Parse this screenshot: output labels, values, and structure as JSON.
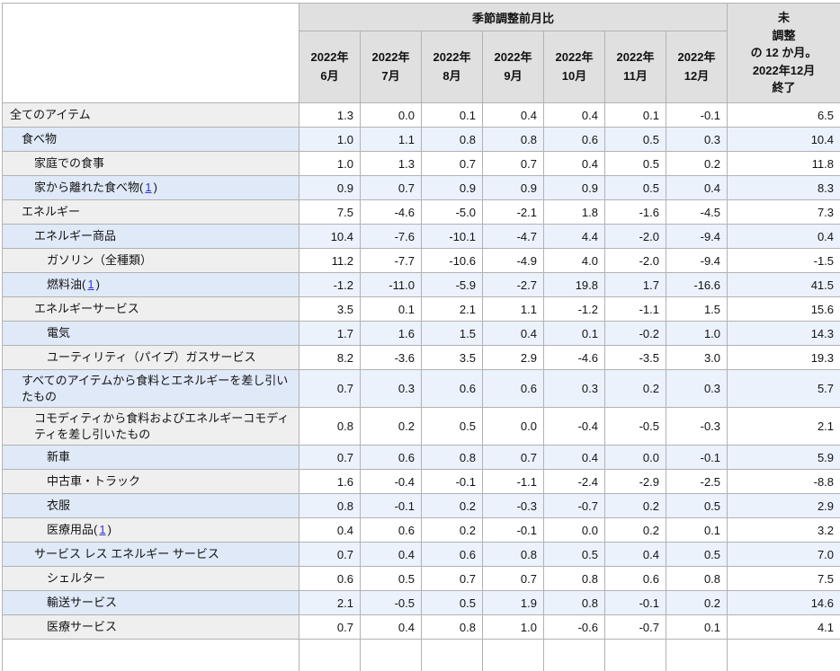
{
  "header": {
    "group_label": "季節調整前月比",
    "unadjusted_label": "未\n調整\nの 12 か月。\n2022年12月\n終了",
    "months": [
      "2022年\n6月",
      "2022年\n7月",
      "2022年\n8月",
      "2022年\n9月",
      "2022年\n10月",
      "2022年\n11月",
      "2022年\n12月"
    ]
  },
  "footnote_marker": "1",
  "colors": {
    "header_bg": "#e0e0e0",
    "label_bg": "#efefef",
    "stripe_label_bg": "#dfe9f8",
    "stripe_value_bg": "#ebf2fc",
    "value_bg": "#ffffff",
    "border": "#b2b2b2",
    "link": "#3333cc"
  },
  "chart_data": {
    "type": "table",
    "column_group_label": "季節調整前月比",
    "columns": [
      "2022年6月",
      "2022年7月",
      "2022年8月",
      "2022年9月",
      "2022年10月",
      "2022年11月",
      "2022年12月",
      "未調整の12か月。2022年12月終了"
    ],
    "rows": [
      {
        "label": "全てのアイテム",
        "indent": 0,
        "values": [
          1.3,
          0.0,
          0.1,
          0.4,
          0.4,
          0.1,
          -0.1,
          6.5
        ]
      },
      {
        "label": "食べ物",
        "indent": 1,
        "values": [
          1.0,
          1.1,
          0.8,
          0.8,
          0.6,
          0.5,
          0.3,
          10.4
        ]
      },
      {
        "label": "家庭での食事",
        "indent": 2,
        "values": [
          1.0,
          1.3,
          0.7,
          0.7,
          0.4,
          0.5,
          0.2,
          11.8
        ]
      },
      {
        "label": "家から離れた食べ物",
        "indent": 2,
        "footnote": true,
        "values": [
          0.9,
          0.7,
          0.9,
          0.9,
          0.9,
          0.5,
          0.4,
          8.3
        ]
      },
      {
        "label": "エネルギー",
        "indent": 1,
        "values": [
          7.5,
          -4.6,
          -5.0,
          -2.1,
          1.8,
          -1.6,
          -4.5,
          7.3
        ]
      },
      {
        "label": "エネルギー商品",
        "indent": 2,
        "values": [
          10.4,
          -7.6,
          -10.1,
          -4.7,
          4.4,
          -2.0,
          -9.4,
          0.4
        ]
      },
      {
        "label": "ガソリン（全種類）",
        "indent": 3,
        "values": [
          11.2,
          -7.7,
          -10.6,
          -4.9,
          4.0,
          -2.0,
          -9.4,
          -1.5
        ]
      },
      {
        "label": "燃料油",
        "indent": 3,
        "footnote": true,
        "values": [
          -1.2,
          -11.0,
          -5.9,
          -2.7,
          19.8,
          1.7,
          -16.6,
          41.5
        ]
      },
      {
        "label": "エネルギーサービス",
        "indent": 2,
        "values": [
          3.5,
          0.1,
          2.1,
          1.1,
          -1.2,
          -1.1,
          1.5,
          15.6
        ]
      },
      {
        "label": "電気",
        "indent": 3,
        "values": [
          1.7,
          1.6,
          1.5,
          0.4,
          0.1,
          -0.2,
          1.0,
          14.3
        ]
      },
      {
        "label": "ユーティリティ（パイプ）ガスサービス",
        "indent": 3,
        "values": [
          8.2,
          -3.6,
          3.5,
          2.9,
          -4.6,
          -3.5,
          3.0,
          19.3
        ]
      },
      {
        "label": "すべてのアイテムから食料とエネルギーを差し引いたもの",
        "indent": 1,
        "values": [
          0.7,
          0.3,
          0.6,
          0.6,
          0.3,
          0.2,
          0.3,
          5.7
        ]
      },
      {
        "label": "コモディティから食料およびエネルギーコモディティを差し引いたもの",
        "indent": 2,
        "values": [
          0.8,
          0.2,
          0.5,
          0.0,
          -0.4,
          -0.5,
          -0.3,
          2.1
        ]
      },
      {
        "label": "新車",
        "indent": 3,
        "values": [
          0.7,
          0.6,
          0.8,
          0.7,
          0.4,
          0.0,
          -0.1,
          5.9
        ]
      },
      {
        "label": "中古車・トラック",
        "indent": 3,
        "values": [
          1.6,
          -0.4,
          -0.1,
          -1.1,
          -2.4,
          -2.9,
          -2.5,
          -8.8
        ]
      },
      {
        "label": "衣服",
        "indent": 3,
        "values": [
          0.8,
          -0.1,
          0.2,
          -0.3,
          -0.7,
          0.2,
          0.5,
          2.9
        ]
      },
      {
        "label": "医療用品",
        "indent": 3,
        "footnote": true,
        "values": [
          0.4,
          0.6,
          0.2,
          -0.1,
          0.0,
          0.2,
          0.1,
          3.2
        ]
      },
      {
        "label": "サービス レス エネルギー サービス",
        "indent": 2,
        "values": [
          0.7,
          0.4,
          0.6,
          0.8,
          0.5,
          0.4,
          0.5,
          7.0
        ]
      },
      {
        "label": "シェルター",
        "indent": 3,
        "values": [
          0.6,
          0.5,
          0.7,
          0.7,
          0.8,
          0.6,
          0.8,
          7.5
        ]
      },
      {
        "label": "輸送サービス",
        "indent": 3,
        "values": [
          2.1,
          -0.5,
          0.5,
          1.9,
          0.8,
          -0.1,
          0.2,
          14.6
        ]
      },
      {
        "label": "医療サービス",
        "indent": 3,
        "values": [
          0.7,
          0.4,
          0.8,
          1.0,
          -0.6,
          -0.7,
          0.1,
          4.1
        ]
      }
    ]
  }
}
